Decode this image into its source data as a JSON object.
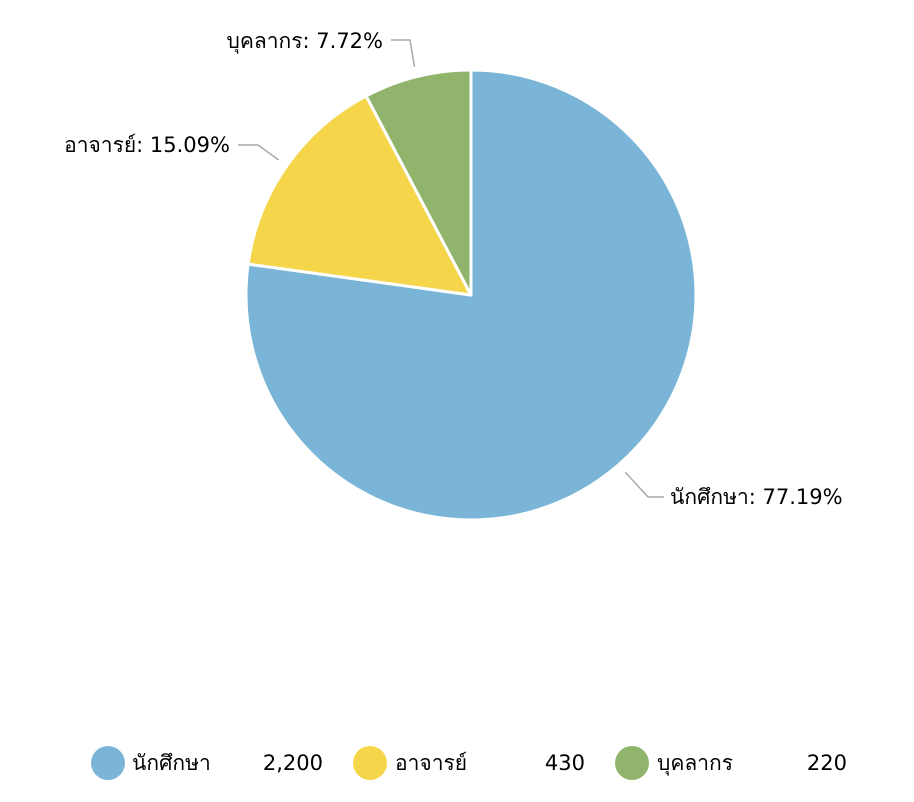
{
  "chart_data": {
    "type": "pie",
    "categories": [
      "นักศึกษา",
      "อาจารย์",
      "บุคลากร"
    ],
    "values": [
      2200,
      430,
      220
    ],
    "value_labels": [
      "2,200",
      "430",
      "220"
    ],
    "percent_labels": [
      "77.19%",
      "15.09%",
      "7.72%"
    ],
    "colors": [
      "#7ab5d8",
      "#f5d54a",
      "#90b46c"
    ],
    "legend_position": "bottom",
    "start_angle": "12 o'clock, clockwise"
  }
}
